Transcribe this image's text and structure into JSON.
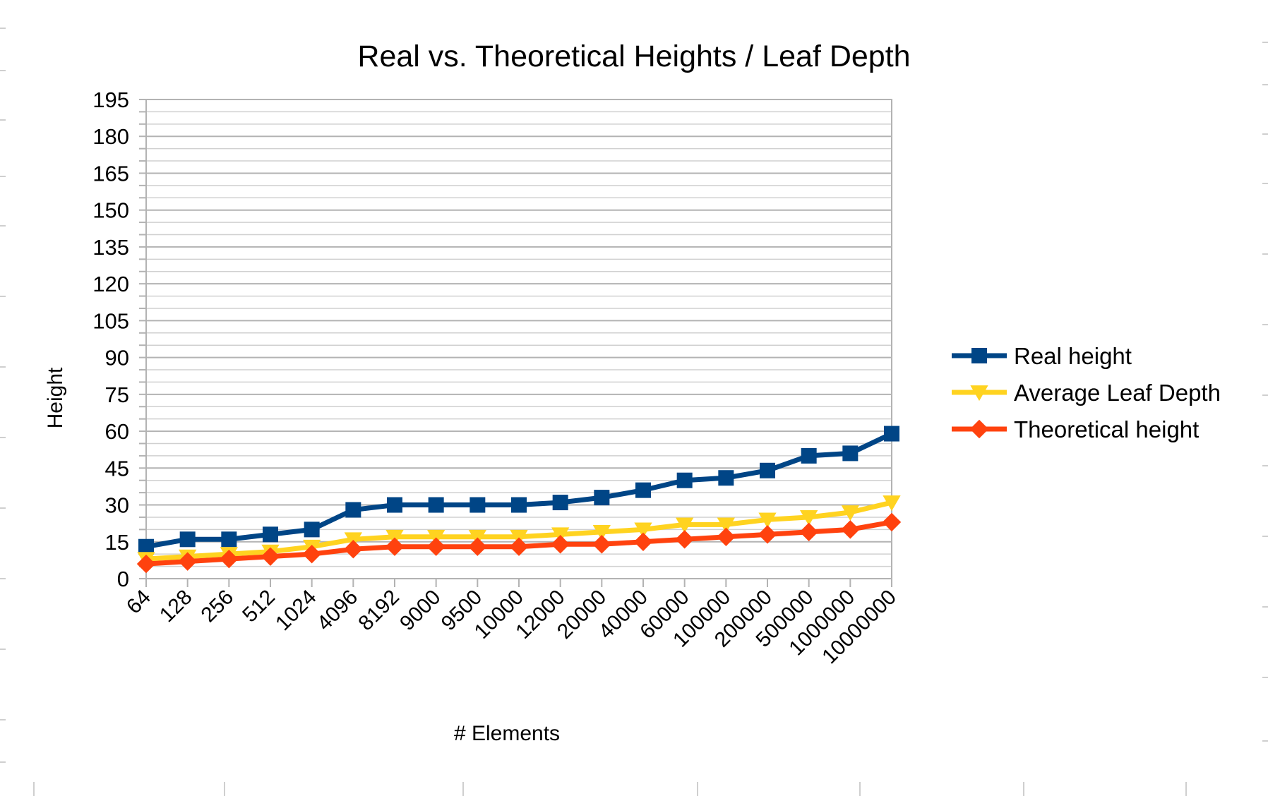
{
  "chart_data": {
    "type": "line",
    "title": "Real vs. Theoretical Heights / Leaf Depth",
    "xlabel": "# Elements",
    "ylabel": "Height",
    "categories": [
      "64",
      "128",
      "256",
      "512",
      "1024",
      "4096",
      "8192",
      "9000",
      "9500",
      "10000",
      "12000",
      "20000",
      "40000",
      "60000",
      "100000",
      "200000",
      "500000",
      "1000000",
      "10000000"
    ],
    "ylim": [
      0,
      195
    ],
    "yticks": [
      0,
      15,
      30,
      45,
      60,
      75,
      90,
      105,
      120,
      135,
      150,
      165,
      180,
      195
    ],
    "grid": true,
    "legend_position": "right",
    "series": [
      {
        "name": "Real height",
        "color": "#004586",
        "marker": "square",
        "values": [
          13,
          16,
          16,
          18,
          20,
          28,
          30,
          30,
          30,
          30,
          31,
          33,
          36,
          40,
          41,
          44,
          50,
          51,
          59
        ]
      },
      {
        "name": "Average Leaf Depth",
        "color": "#ffd320",
        "marker": "triangle-down",
        "values": [
          8,
          9,
          10,
          11,
          13,
          16,
          17,
          17,
          17,
          17,
          18,
          19,
          20,
          22,
          22,
          24,
          25,
          27,
          31
        ]
      },
      {
        "name": "Theoretical height",
        "color": "#ff420e",
        "marker": "diamond",
        "values": [
          6,
          7,
          8,
          9,
          10,
          12,
          13,
          13,
          13,
          13,
          14,
          14,
          15,
          16,
          17,
          18,
          19,
          20,
          23
        ]
      }
    ]
  }
}
